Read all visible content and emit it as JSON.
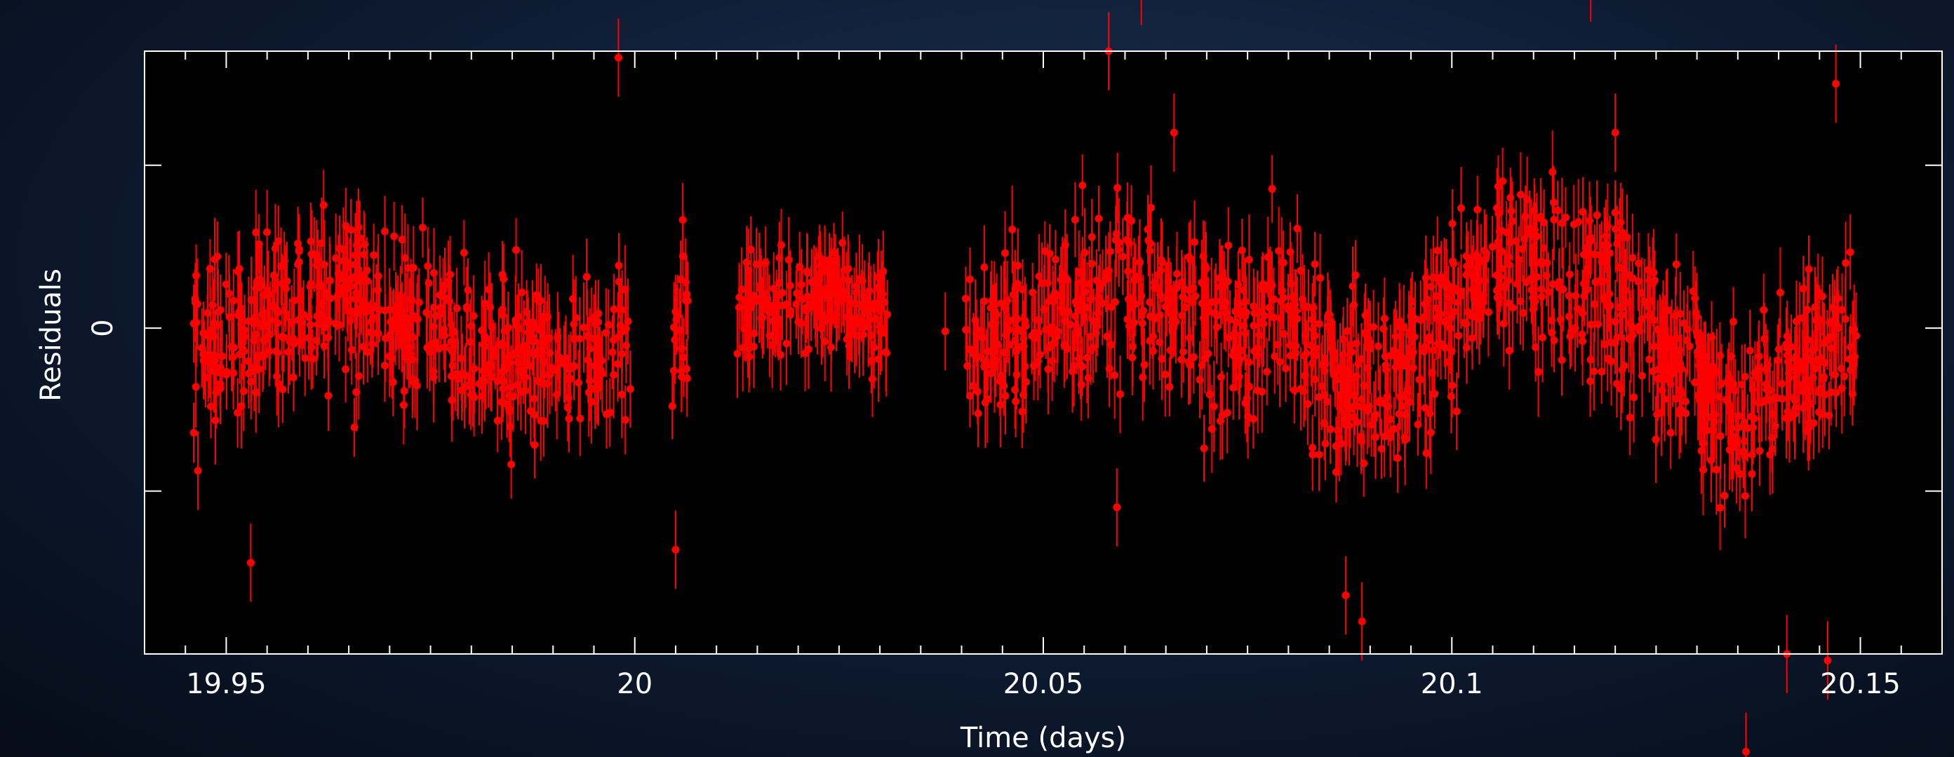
{
  "chart_data": {
    "type": "scatter",
    "title": "",
    "xlabel": "Time (days)",
    "ylabel": "Residuals",
    "xlim": [
      19.94,
      20.16
    ],
    "ylim": [
      -1.0,
      0.85
    ],
    "x_ticks": [
      "19.95",
      "20",
      "20.05",
      "20.1",
      "20.15"
    ],
    "y_ticks": [
      "0"
    ],
    "grid": false,
    "error_bars": true,
    "marker_color": "#ff0000",
    "frame_color": "#ffffff",
    "plot_background": "#000000",
    "observing_segments": [
      {
        "start": 19.946,
        "end": 19.9995,
        "level": -0.05,
        "scatter": 0.14
      },
      {
        "start": 20.0045,
        "end": 20.0065,
        "level": 0.03,
        "scatter": 0.18
      },
      {
        "start": 20.0125,
        "end": 20.031,
        "level": 0.06,
        "scatter": 0.09
      },
      {
        "start": 20.0405,
        "end": 20.1495,
        "level": 0.0,
        "scatter": 0.15
      }
    ],
    "baseline": [
      [
        19.946,
        -0.08
      ],
      [
        19.955,
        0.02
      ],
      [
        19.965,
        0.12
      ],
      [
        19.975,
        0.0
      ],
      [
        19.985,
        -0.1
      ],
      [
        19.995,
        -0.05
      ],
      [
        20.013,
        0.04
      ],
      [
        20.02,
        0.12
      ],
      [
        20.025,
        0.08
      ],
      [
        20.031,
        0.0
      ],
      [
        20.041,
        -0.1
      ],
      [
        20.05,
        0.03
      ],
      [
        20.06,
        0.14
      ],
      [
        20.07,
        0.02
      ],
      [
        20.08,
        0.05
      ],
      [
        20.087,
        -0.2
      ],
      [
        20.095,
        -0.15
      ],
      [
        20.1,
        0.1
      ],
      [
        20.11,
        0.22
      ],
      [
        20.12,
        0.1
      ],
      [
        20.13,
        -0.15
      ],
      [
        20.135,
        -0.3
      ],
      [
        20.14,
        -0.15
      ],
      [
        20.15,
        -0.05
      ]
    ],
    "notable_points": [
      [
        19.998,
        0.83
      ],
      [
        19.953,
        -0.72
      ],
      [
        20.005,
        -0.68
      ],
      [
        20.038,
        -0.01
      ],
      [
        20.058,
        0.85
      ],
      [
        20.062,
        1.05
      ],
      [
        20.066,
        0.6
      ],
      [
        20.087,
        -0.82
      ],
      [
        20.089,
        -0.9
      ],
      [
        20.117,
        1.06
      ],
      [
        20.136,
        -1.3
      ],
      [
        20.141,
        -1.0
      ],
      [
        20.146,
        -1.02
      ],
      [
        20.147,
        0.75
      ],
      [
        20.059,
        -0.55
      ],
      [
        20.12,
        0.6
      ]
    ]
  }
}
